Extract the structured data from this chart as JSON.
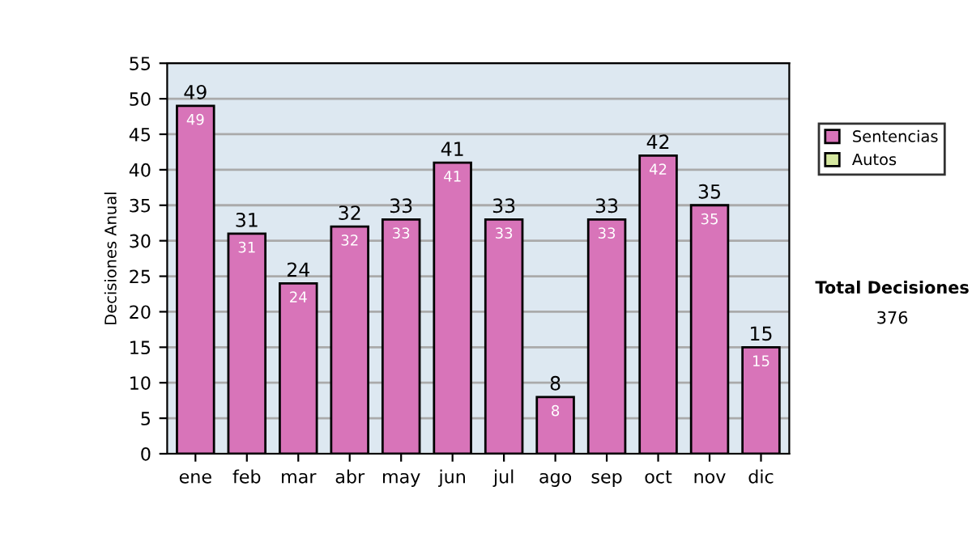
{
  "chart_data": {
    "type": "bar",
    "ylabel": "Decisiones Anual",
    "categories": [
      "ene",
      "feb",
      "mar",
      "abr",
      "may",
      "jun",
      "jul",
      "ago",
      "sep",
      "oct",
      "nov",
      "dic"
    ],
    "stacked": true,
    "series": [
      {
        "name": "Sentencias",
        "color": "#d874b9",
        "values": [
          49,
          31,
          24,
          32,
          33,
          41,
          33,
          8,
          33,
          42,
          35,
          15
        ],
        "value_labels": [
          "49",
          "31",
          "24",
          "32",
          "33",
          "41",
          "33",
          "8",
          "33",
          "42",
          "35",
          "15"
        ]
      },
      {
        "name": "Autos",
        "color": "#d6e8a0",
        "values": [
          null,
          null,
          null,
          null,
          null,
          null,
          null,
          null,
          null,
          null,
          null,
          null
        ]
      }
    ],
    "totals": [
      "49",
      "31",
      "24",
      "32",
      "33",
      "41",
      "33",
      "8",
      "33",
      "42",
      "35",
      "15"
    ],
    "ylim": [
      0,
      55
    ],
    "yticks": [
      0,
      5,
      10,
      15,
      20,
      25,
      30,
      35,
      40,
      45,
      50,
      55
    ],
    "grid": "y",
    "legend": "right",
    "annotations": [
      "Total Decisiones",
      "376"
    ]
  }
}
